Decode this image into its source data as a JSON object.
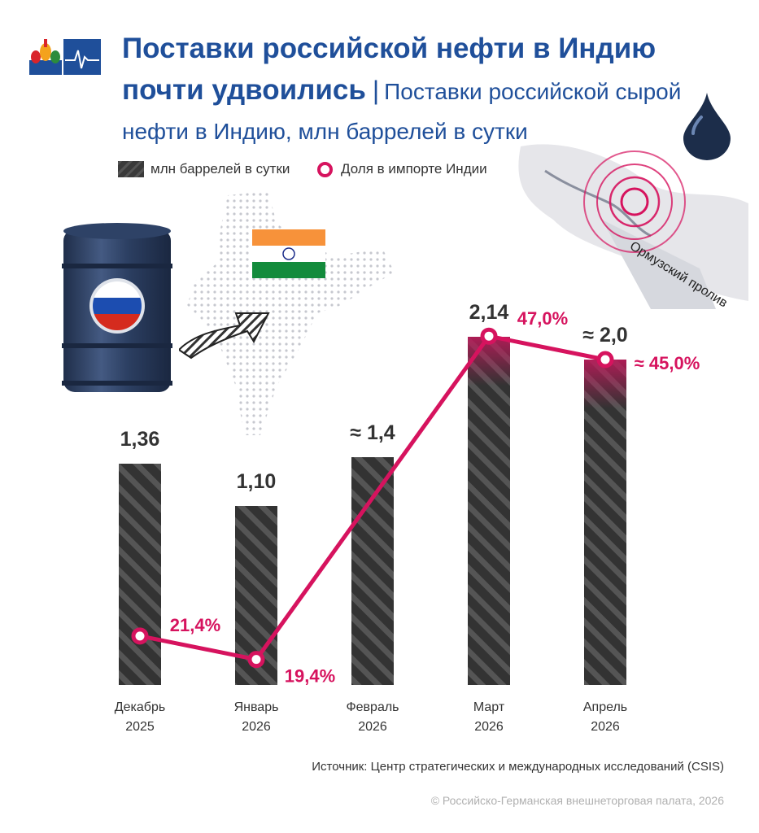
{
  "header": {
    "title_bold": "Поставки российской нефти в Индию почти удвоились",
    "separator": "|",
    "subtitle": "Поставки российской сырой нефти в Индию, млн баррелей в сутки"
  },
  "map_label": "Ормузский пролив",
  "legend": {
    "bars": "млн баррелей в сутки",
    "line": "Доля в импорте Индии"
  },
  "colors": {
    "title": "#1f4f9a",
    "line": "#d6135e",
    "bar": "#3a3a3a",
    "bar_highlight": "#9a2a4a"
  },
  "chart_data": {
    "type": "bar",
    "categories": [
      "Декабрь 2025",
      "Январь 2026",
      "Февраль 2026",
      "Март 2026",
      "Апрель 2026"
    ],
    "category_lines": [
      [
        "Декабрь",
        "2025"
      ],
      [
        "Январь",
        "2026"
      ],
      [
        "Февраль",
        "2026"
      ],
      [
        "Март",
        "2026"
      ],
      [
        "Апрель",
        "2026"
      ]
    ],
    "series": [
      {
        "name": "млн баррелей в сутки",
        "type": "bar",
        "values": [
          1.36,
          1.1,
          1.4,
          2.14,
          2.0
        ],
        "labels": [
          "1,36",
          "1,10",
          "≈ 1,4",
          "2,14",
          "≈ 2,0"
        ]
      },
      {
        "name": "Доля в импорте Индии",
        "type": "line",
        "values": [
          21.4,
          19.4,
          null,
          47.0,
          45.0
        ],
        "labels": [
          "21,4%",
          "19,4%",
          null,
          "47,0%",
          "≈ 45,0%"
        ]
      }
    ]
  },
  "footer": {
    "source": "Источник: Центр стратегических и международных исследований (CSIS)",
    "copyright": "© Российско-Германская внешнеторговая палата, 2026"
  }
}
